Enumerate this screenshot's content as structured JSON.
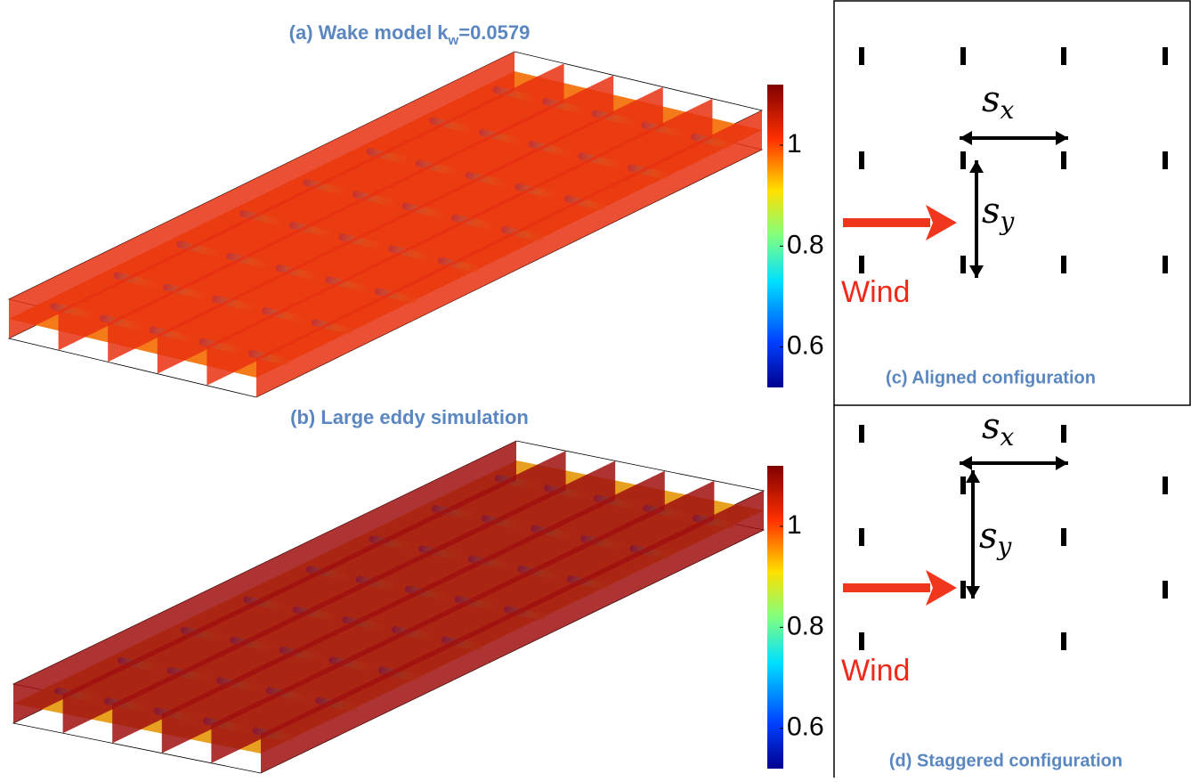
{
  "panel_a": {
    "title": "(a) Wake model k",
    "title_sub": "w",
    "title_end": "=0.0579",
    "colorbar": {
      "lim": [
        0.52,
        1.12
      ],
      "ticks": [
        0.6,
        0.8,
        1
      ]
    }
  },
  "panel_b": {
    "title": "(b) Large eddy simulation",
    "colorbar": {
      "lim": [
        0.52,
        1.12
      ],
      "ticks": [
        0.6,
        0.8,
        1
      ]
    }
  },
  "panel_c": {
    "title": "(c) Aligned configuration",
    "sx": {
      "main": "s",
      "sub": "x"
    },
    "sy": {
      "main": "s",
      "sub": "y"
    },
    "wind": "Wind"
  },
  "panel_d": {
    "title": "(d) Staggered configuration",
    "sx": {
      "main": "s",
      "sub": "x"
    },
    "sy": {
      "main": "s",
      "sub": "y"
    },
    "wind": "Wind"
  }
}
